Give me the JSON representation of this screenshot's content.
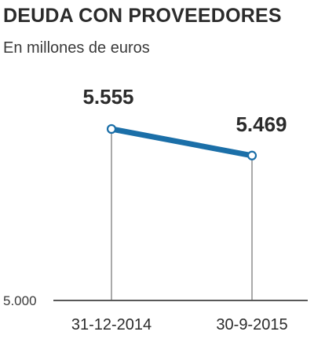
{
  "chart_data": {
    "type": "line",
    "title": "DEUDA CON PROVEEDORES",
    "subtitle": "En millones de euros",
    "categories": [
      "31-12-2014",
      "30-9-2015"
    ],
    "values": [
      5555,
      5469
    ],
    "value_labels": [
      "5.555",
      "5.469"
    ],
    "ylim": [
      5000,
      5600
    ],
    "yticks": [
      5000
    ],
    "ytick_labels": [
      "5.000"
    ],
    "grid": false,
    "colors": {
      "line": "#1b6fa8",
      "marker_fill": "#ffffff",
      "axis": "#222222",
      "droplines": "#555555",
      "text": "#2b2b2b"
    }
  }
}
